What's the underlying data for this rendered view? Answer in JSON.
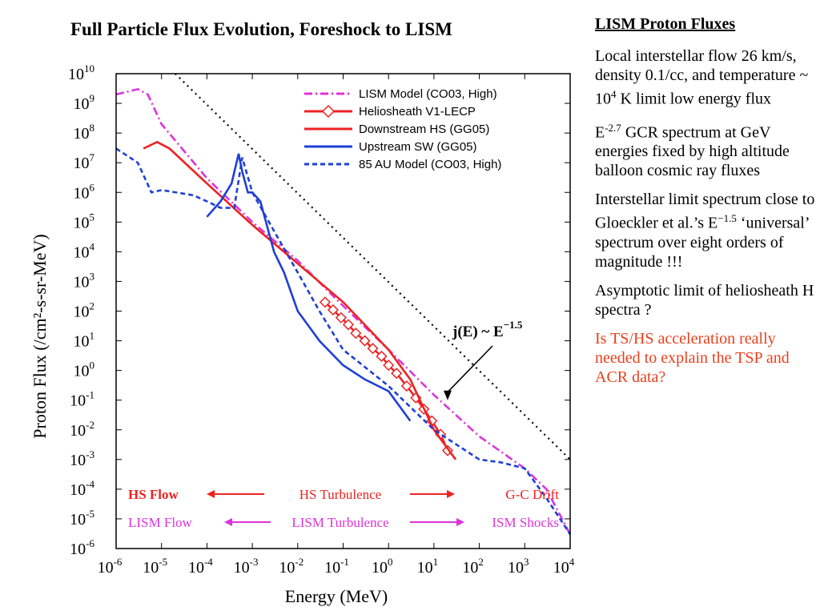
{
  "chart_data": {
    "type": "line",
    "title": "Full Particle Flux Evolution, Foreshock to LISM",
    "xlabel": "Energy (MeV)",
    "ylabel": "Proton Flux (/cm²-s-sr-MeV)",
    "xscale": "log",
    "yscale": "log",
    "xlim": [
      1e-06,
      10000.0
    ],
    "ylim": [
      1e-06,
      10000000000.0
    ],
    "x_tick_labels": [
      "10",
      "10",
      "10",
      "10",
      "10",
      "10",
      "10",
      "10",
      "10",
      "10",
      "10"
    ],
    "x_tick_exponents": [
      "-6",
      "-5",
      "-4",
      "-3",
      "-2",
      "-1",
      "0",
      "1",
      "2",
      "3",
      "4"
    ],
    "y_tick_labels": [
      "10",
      "10",
      "10",
      "10",
      "10",
      "10",
      "10",
      "10",
      "10",
      "10",
      "10",
      "10",
      "10",
      "10",
      "10",
      "10",
      "10"
    ],
    "y_tick_exponents": [
      "-6",
      "-5",
      "-4",
      "-3",
      "-2",
      "-1",
      "0",
      "1",
      "2",
      "3",
      "4",
      "5",
      "6",
      "7",
      "8",
      "9",
      "10"
    ],
    "legend_position": "top-right",
    "series": [
      {
        "name": "LISM Model (CO03, High)",
        "color": "#dd33dd",
        "style": "dash-dot",
        "x": [
          1e-06,
          3e-06,
          5e-06,
          1e-05,
          0.0001,
          0.001,
          0.01,
          0.1,
          1,
          10,
          100,
          1000,
          3000,
          10000.0
        ],
        "y": [
          2000000000.0,
          3000000000.0,
          2000000000.0,
          200000000.0,
          3000000.0,
          100000.0,
          5000.0,
          150.0,
          5,
          0.15,
          0.006,
          0.0005,
          0.0001,
          3e-06
        ]
      },
      {
        "name": "Heliosheath V1-LECP",
        "color": "#ee2222",
        "style": "diamond-marker",
        "x": [
          0.04,
          0.06,
          0.09,
          0.13,
          0.19,
          0.3,
          0.45,
          0.7,
          1.0,
          1.5,
          2.5,
          4,
          6,
          9,
          14,
          20
        ],
        "y": [
          200,
          110,
          60,
          35,
          18,
          10,
          5.5,
          3,
          1.5,
          0.8,
          0.3,
          0.12,
          0.05,
          0.02,
          0.007,
          0.002
        ]
      },
      {
        "name": "Downstream HS (GG05)",
        "color": "#ee2222",
        "style": "solid",
        "x": [
          4e-06,
          8e-06,
          1.5e-05,
          0.0001,
          0.001,
          0.01,
          0.1,
          1,
          3,
          10,
          30
        ],
        "y": [
          30000000.0,
          50000000.0,
          30000000.0,
          2000000.0,
          80000.0,
          4000.0,
          200.0,
          5,
          0.5,
          0.01,
          0.001
        ]
      },
      {
        "name": "Upstream SW (GG05)",
        "color": "#1f3fd6",
        "style": "solid",
        "x": [
          0.0001,
          0.0002,
          0.00035,
          0.0005,
          0.0006,
          0.0008,
          0.001,
          0.0015,
          0.002,
          0.003,
          0.005,
          0.01,
          0.03,
          0.1,
          0.3,
          1,
          3
        ],
        "y": [
          150000.0,
          500000.0,
          2000000.0,
          20000000.0,
          5000000.0,
          1000000.0,
          1000000.0,
          500000.0,
          100000.0,
          10000.0,
          2000.0,
          100.0,
          10,
          1.5,
          0.5,
          0.2,
          0.02
        ]
      },
      {
        "name": "85 AU Model (CO03, High)",
        "color": "#1f3fd6",
        "style": "dashed",
        "x": [
          1e-06,
          3e-06,
          6e-06,
          1e-05,
          5e-05,
          0.0001,
          0.0002,
          0.0004,
          0.0006,
          0.001,
          0.003,
          0.01,
          0.03,
          0.1,
          1,
          10,
          50,
          100,
          300,
          1000,
          3000,
          10000.0
        ],
        "y": [
          30000000.0,
          10000000.0,
          1000000.0,
          1200000.0,
          800000.0,
          500000.0,
          300000.0,
          300000.0,
          15000000.0,
          1000000.0,
          50000.0,
          2000.0,
          100.0,
          5,
          0.3,
          0.01,
          0.002,
          0.001,
          0.0008,
          0.0005,
          5e-05,
          3e-06
        ]
      },
      {
        "name": "",
        "color": "#000000",
        "style": "dotted",
        "x": [
          2e-05,
          10000.0
        ],
        "y": [
          10000000000.0,
          0.001
        ]
      }
    ],
    "annotations": [
      {
        "label": "j(E) ~ E",
        "superscript": "−1.5",
        "arrow_to": [
          20,
          0.1
        ]
      }
    ],
    "bands": [
      {
        "left": "HS Flow",
        "center": "HS Turbulence",
        "right": "G-C Drift",
        "color": "#ee2222"
      },
      {
        "left": "LISM Flow",
        "center": "LISM Turbulence",
        "right": "ISM Shocks",
        "color": "#dd33dd"
      }
    ]
  },
  "side": {
    "heading": "LISM Proton Fluxes",
    "p1_a": "Local interstellar flow 26 km/s, density 0.1/cc, and temperature ~ 10",
    "p1_sup": "4",
    "p1_b": " K limit low energy flux",
    "p2_a": "E",
    "p2_sup": "-2.7",
    "p2_b": " GCR spectrum at GeV energies fixed by high altitude balloon cosmic ray fluxes",
    "p3_a": "Interstellar limit spectrum close to Gloeckler et al.’s E",
    "p3_sup": "−1.5",
    "p3_b": " ‘universal’ spectrum over eight orders of magnitude !!!",
    "p4": "Asymptotic limit of heliosheath H spectra ?",
    "p5": "Is TS/HS acceleration really needed to explain the TSP and ACR data?"
  }
}
